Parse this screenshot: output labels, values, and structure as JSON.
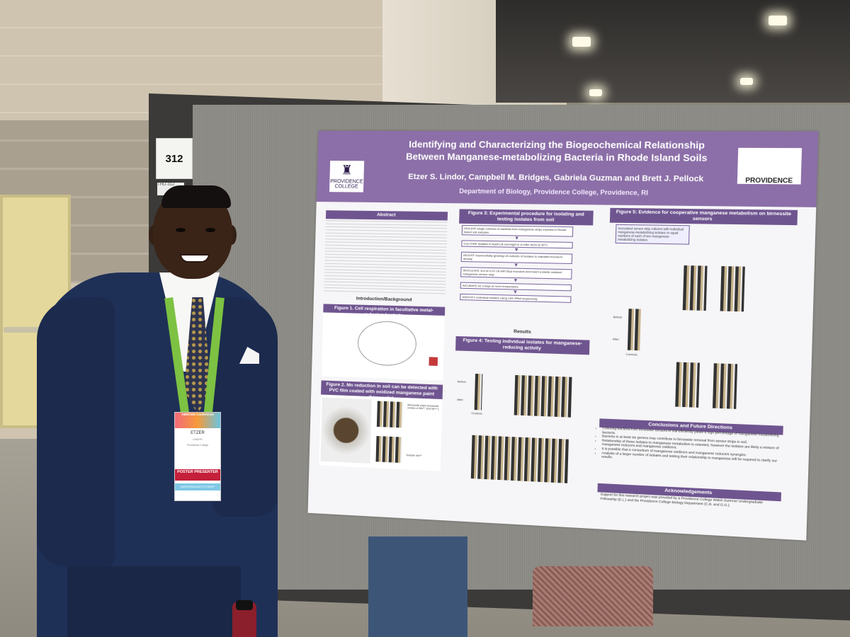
{
  "booth_number": "312",
  "booth_tag": "THU-312",
  "poster": {
    "title_line1": "Identifying and Characterizing the Biogeochemical Relationship",
    "title_line2": "Between Manganese-metabolizing Bacteria in Rhode Island Soils",
    "authors": "Etzer S. Lindor, Campbell M. Bridges, Gabriela Guzman and Brett J. Pellock",
    "department": "Department of Biology, Providence College, Providence, RI",
    "logo_left": "PROVIDENCE COLLEGE",
    "logo_right": "PROVIDENCE",
    "abstract_heading": "Abstract",
    "intro_heading": "Introduction/Background",
    "fig1": "Figure 1. Cell respiration in facultative metal-reducing bacteria",
    "fig2": "Figure 2. Mn reduction in soil can be detected with PVC film coated with oxidized manganese paint (birnessite)",
    "fig3": "Figure 3: Experimental procedure for isolating and testing isolates from soil",
    "fig4": "Figure 4: Testing individual isolates for manganese-reducing activity",
    "fig5": "Figure 5: Evidence for cooperative manganese metabolism on birnessite sensors",
    "results_heading": "Results",
    "steps": [
      "ISOLATE single colonies of bacteria from manganese strips inserted in Rhode Island soil samples",
      "CULTURE isolates in liquid LB overnight in a roller drum at 30°C",
      "ADJUST exponentially-growing LB cultures of isolates to standard inoculum density",
      "INOCULATE 1ml of 0.2X LB with 50µl inoculum and insert a sterile oxidized manganese sensor strip",
      "INCUBATE for 3 days at room temperature",
      "IDENTIFY individual isolates using 16S rRNA sequencing"
    ],
    "conclusions_heading": "Conclusions and Future Directions",
    "conclusions": [
      "Culturing bacteria from birnessite sensors in soil efficiently yields a high percentage of manganese-metabolizing bacteria.",
      "Bacteria in at least six genera may contribute to birnessite removal from sensor strips in soil.",
      "Relationship of these isolates to manganese metabolism is untested, however the isolates are likely a mixture of manganese reducers and manganese oxidizers.",
      "It is possible that a consortium of manganese oxidizers and manganese reducers synergize.",
      "Analysis of a larger number of isolates and testing their relationship to manganese will be required to clarify our results."
    ],
    "ack_heading": "Acknowledgements",
    "ack": "Support for this research project was provided by a Providence College Walsh Summer Undergraduate Fellowship (E.L.) and the Providence College Biology Department (C.B. and G.G.).",
    "label_before": "Before",
    "label_after": "After",
    "label_controls": "Controls",
    "fig5_box": "Inoculated sensor strip cultures with individual manganese-metabolizing isolates or equal numbers of each of two manganese-metabolizing isolates",
    "fig2_caption": "Birnessite paint (insoluble oxides of Mn³⁺ and Mn⁴⁺)",
    "fig2_soluble": "Soluble Mn²⁺"
  },
  "badge": {
    "header": "ABRCMS Conference",
    "name": "ETZER",
    "surname": "LINDOR",
    "school": "Providence College",
    "role": "POSTER PRESENTER",
    "category": "UNDERGRADUATE STUDENT"
  },
  "colors": {
    "poster_purple": "#8c6fa8",
    "suit_navy": "#1f3057",
    "lanyard_green": "#7dc242"
  }
}
